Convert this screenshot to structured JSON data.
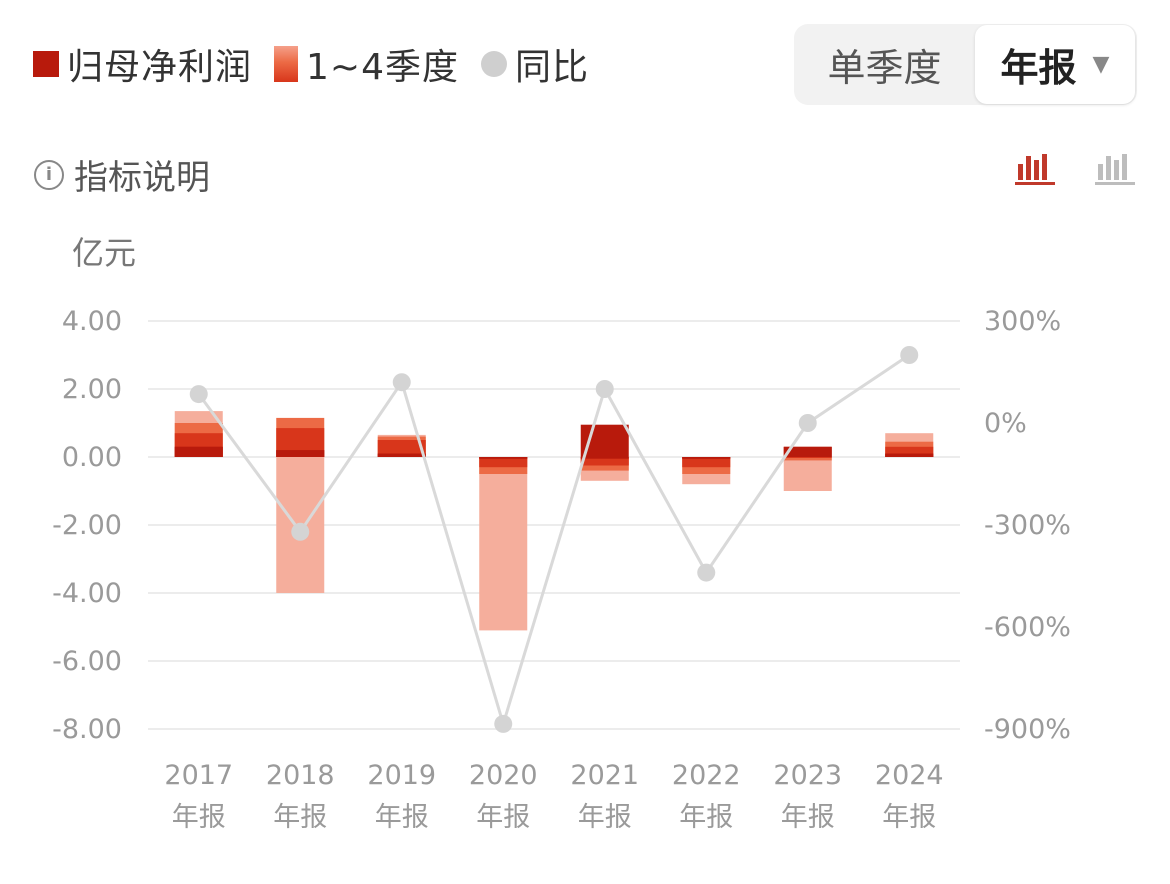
{
  "legend": {
    "items": [
      {
        "label": "归母净利润",
        "swatch": "dark"
      },
      {
        "label": "1~4季度",
        "swatch": "grad"
      },
      {
        "label": "同比",
        "swatch": "dot"
      }
    ]
  },
  "toggle": {
    "single_label": "单季度",
    "annual_label": "年报",
    "annual_caret": "▼",
    "selected": "年报"
  },
  "info": {
    "label": "指标说明",
    "icon": "i"
  },
  "view_toggle": {
    "bar_chart_icon_active": "bar-chart-icon",
    "bar_chart_icon_inactive": "bar-chart-icon-gray"
  },
  "colors": {
    "net_profit": "#b81a0c",
    "q1": "#b81a0c",
    "q2": "#d8361b",
    "q3": "#ec6a45",
    "q4": "#f5ae9c",
    "yoy_line": "#d9d9d9",
    "yoy_point": "#d4d4d4",
    "grid": "#ececec",
    "axis_text": "#9a9a9a"
  },
  "chart_data": {
    "type": "bar",
    "unit": "亿元",
    "categories": [
      "2017",
      "2018",
      "2019",
      "2020",
      "2021",
      "2022",
      "2023",
      "2024"
    ],
    "category_sublabel": "年报",
    "y_left": {
      "ticks": [
        "4.00",
        "2.00",
        "0.00",
        "-2.00",
        "-4.00",
        "-6.00",
        "-8.00"
      ],
      "ylim": [
        -8,
        4
      ]
    },
    "y_right": {
      "ticks": [
        "300%",
        "0%",
        "-300%",
        "-600%",
        "-900%"
      ],
      "ylim": [
        -900,
        300
      ]
    },
    "net_profit": [
      0.3,
      0.2,
      0.1,
      -0.05,
      0.95,
      -0.05,
      0.3,
      0.1
    ],
    "quarters_cumulative": [
      [
        0.3,
        0.7,
        1.0,
        1.35
      ],
      [
        0.2,
        0.85,
        1.15,
        -4.0
      ],
      [
        0.1,
        0.5,
        0.6,
        0.65
      ],
      [
        -0.05,
        -0.3,
        -0.5,
        -5.1
      ],
      [
        -0.05,
        -0.25,
        -0.4,
        -0.7
      ],
      [
        -0.05,
        -0.3,
        -0.5,
        -0.8
      ],
      [
        0.3,
        0.0,
        -0.1,
        -1.0
      ],
      [
        0.1,
        0.3,
        0.45,
        0.7
      ]
    ],
    "series": [
      {
        "name": "同比",
        "values": [
          85,
          -320,
          120,
          -885,
          100,
          -440,
          0,
          200
        ],
        "axis": "right",
        "type": "line"
      }
    ],
    "grid": true,
    "legend_position": "top-left"
  }
}
